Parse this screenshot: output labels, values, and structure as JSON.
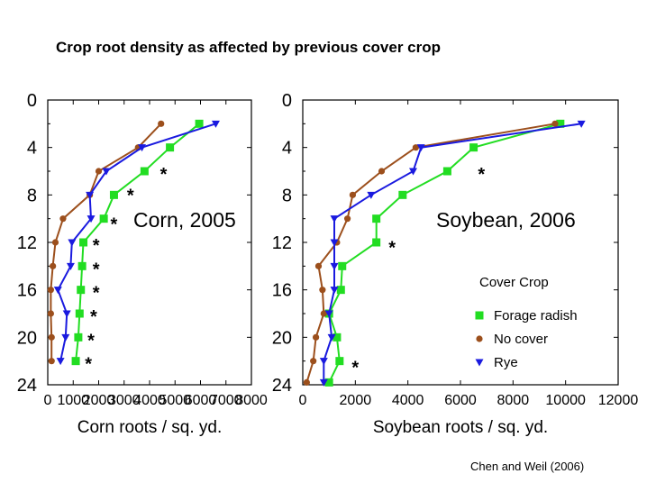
{
  "slide": {
    "title": "Crop root density as affected by previous cover crop",
    "citation": "Chen and Weil (2006)"
  },
  "colors": {
    "forage_radish": "#22dd22",
    "no_cover": "#9c4f1c",
    "rye": "#1a1adf"
  },
  "chart_data": [
    {
      "type": "line",
      "annotation": "Corn, 2005",
      "xlabel": "Corn roots / sq. yd.",
      "ylabel": "",
      "xlim": [
        0,
        8000
      ],
      "ylim": [
        0,
        24
      ],
      "y_inverted": true,
      "xticks": [
        0,
        1000,
        2000,
        3000,
        4000,
        5000,
        6000,
        7000,
        8000
      ],
      "yticks": [
        0,
        4,
        8,
        12,
        16,
        20,
        24
      ],
      "series": [
        {
          "key": "forage_radish",
          "marker": "square",
          "x": [
            5950,
            4800,
            3800,
            2600,
            2200,
            1400,
            1350,
            1300,
            1250,
            1200,
            1100
          ],
          "y": [
            2,
            4,
            6,
            8,
            10,
            12,
            14,
            16,
            18,
            20,
            22
          ]
        },
        {
          "key": "no_cover",
          "marker": "circle",
          "x": [
            4450,
            3550,
            2000,
            1650,
            600,
            300,
            200,
            120,
            120,
            150,
            150
          ],
          "y": [
            2,
            4,
            6,
            8,
            10,
            12,
            14,
            16,
            18,
            20,
            22
          ]
        },
        {
          "key": "rye",
          "marker": "triangle-down",
          "x": [
            6600,
            3700,
            2300,
            1650,
            1700,
            950,
            900,
            400,
            750,
            700,
            500
          ],
          "y": [
            2,
            4,
            6,
            8,
            10,
            12,
            14,
            16,
            18,
            20,
            22
          ]
        }
      ],
      "significance": [
        {
          "x": 4550,
          "y": 6,
          "label": "*"
        },
        {
          "x": 3250,
          "y": 7.8,
          "label": "*"
        },
        {
          "x": 2600,
          "y": 10.2,
          "label": "*"
        },
        {
          "x": 1900,
          "y": 12,
          "label": "*"
        },
        {
          "x": 1900,
          "y": 14,
          "label": "*"
        },
        {
          "x": 1900,
          "y": 16,
          "label": "*"
        },
        {
          "x": 1800,
          "y": 18,
          "label": "*"
        },
        {
          "x": 1700,
          "y": 20,
          "label": "*"
        },
        {
          "x": 1600,
          "y": 22,
          "label": "*"
        }
      ]
    },
    {
      "type": "line",
      "annotation": "Soybean, 2006",
      "xlabel": "Soybean roots / sq. yd.",
      "ylabel": "",
      "xlim": [
        0,
        12000
      ],
      "ylim": [
        0,
        24
      ],
      "y_inverted": true,
      "xticks": [
        0,
        2000,
        4000,
        6000,
        8000,
        10000,
        12000
      ],
      "yticks": [
        0,
        4,
        8,
        12,
        16,
        20,
        24
      ],
      "legend": {
        "title": "Cover Crop",
        "position": "bottom-right"
      },
      "series": [
        {
          "key": "forage_radish",
          "name": "Forage radish",
          "marker": "square",
          "x": [
            9800,
            6500,
            5500,
            3800,
            2800,
            2800,
            1500,
            1450,
            1000,
            1300,
            1400,
            1000
          ],
          "y": [
            2,
            4,
            6,
            8,
            10,
            12,
            14,
            16,
            18,
            20,
            22,
            23.8
          ]
        },
        {
          "key": "no_cover",
          "name": "No cover",
          "marker": "circle",
          "x": [
            9600,
            4300,
            3000,
            1900,
            1700,
            1300,
            600,
            750,
            800,
            500,
            400,
            150
          ],
          "y": [
            2,
            4,
            6,
            8,
            10,
            12,
            14,
            16,
            18,
            20,
            22,
            23.8
          ]
        },
        {
          "key": "rye",
          "name": "Rye",
          "marker": "triangle-down",
          "x": [
            10600,
            4500,
            4200,
            2600,
            1200,
            1200,
            1200,
            1200,
            1000,
            1100,
            800,
            800
          ],
          "y": [
            2,
            4,
            6,
            8,
            10,
            12,
            14,
            16,
            18,
            20,
            22,
            23.8
          ]
        }
      ],
      "significance": [
        {
          "x": 6800,
          "y": 6,
          "label": "*"
        },
        {
          "x": 3400,
          "y": 12.2,
          "label": "*"
        },
        {
          "x": 2000,
          "y": 22.3,
          "label": "*"
        }
      ]
    }
  ]
}
